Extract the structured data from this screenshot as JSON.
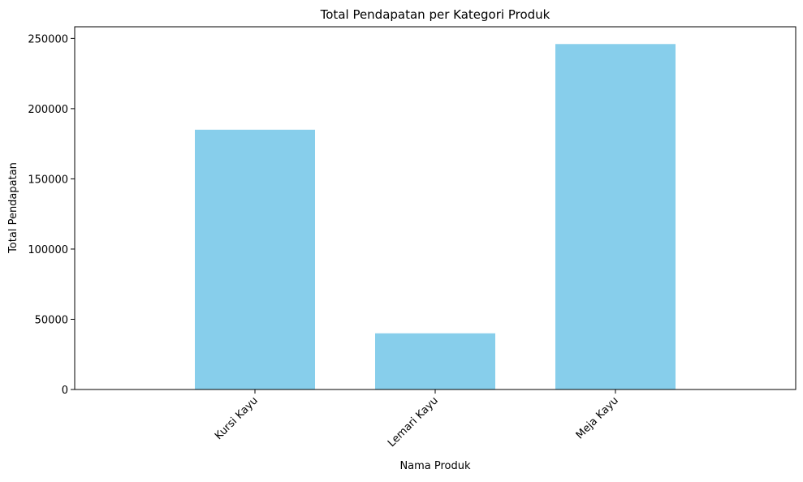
{
  "chart_data": {
    "type": "bar",
    "title": "Total Pendapatan per Kategori Produk",
    "xlabel": "Nama Produk",
    "ylabel": "Total Pendapatan",
    "categories": [
      "Kursi Kayu",
      "Lemari Kayu",
      "Meja Kayu"
    ],
    "values": [
      185000,
      40000,
      246000
    ],
    "ylim": [
      0,
      258300
    ],
    "yticks": [
      0,
      50000,
      100000,
      150000,
      200000,
      250000
    ],
    "grid": false,
    "legend": "none",
    "bar_color": "#87CEEB",
    "xtick_rotation_deg": 45
  }
}
